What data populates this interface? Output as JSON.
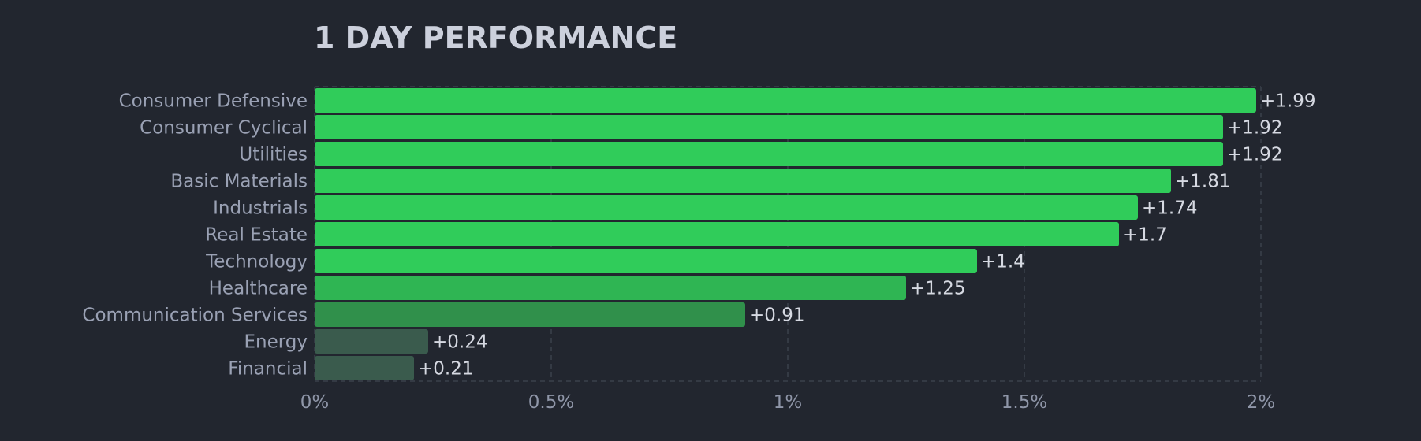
{
  "chart_data": {
    "type": "bar",
    "orientation": "horizontal",
    "title": "1 DAY PERFORMANCE",
    "categories": [
      "Consumer Defensive",
      "Consumer Cyclical",
      "Utilities",
      "Basic Materials",
      "Industrials",
      "Real Estate",
      "Technology",
      "Healthcare",
      "Communication Services",
      "Energy",
      "Financial"
    ],
    "values": [
      1.99,
      1.92,
      1.92,
      1.81,
      1.74,
      1.7,
      1.4,
      1.25,
      0.91,
      0.24,
      0.21
    ],
    "value_labels": [
      "+1.99",
      "+1.92",
      "+1.92",
      "+1.81",
      "+1.74",
      "+1.7",
      "+1.4",
      "+1.25",
      "+0.91",
      "+0.24",
      "+0.21"
    ],
    "bar_colors": [
      "#30cc5a",
      "#30cc5a",
      "#30cc5a",
      "#30cc5a",
      "#30cc5a",
      "#30cc5a",
      "#30cc5a",
      "#2fb553",
      "#30904b",
      "#3a5b4d",
      "#3a5b4d"
    ],
    "xlim": [
      0,
      2
    ],
    "xticks": [
      0,
      0.5,
      1,
      1.5,
      2
    ],
    "xtick_labels": [
      "0%",
      "0.5%",
      "1%",
      "1.5%",
      "2%"
    ],
    "grid": true,
    "xlabel": "",
    "ylabel": ""
  },
  "colors": {
    "background": "#22262f",
    "title": "#ccd0dc",
    "grid": "#3b404c"
  }
}
